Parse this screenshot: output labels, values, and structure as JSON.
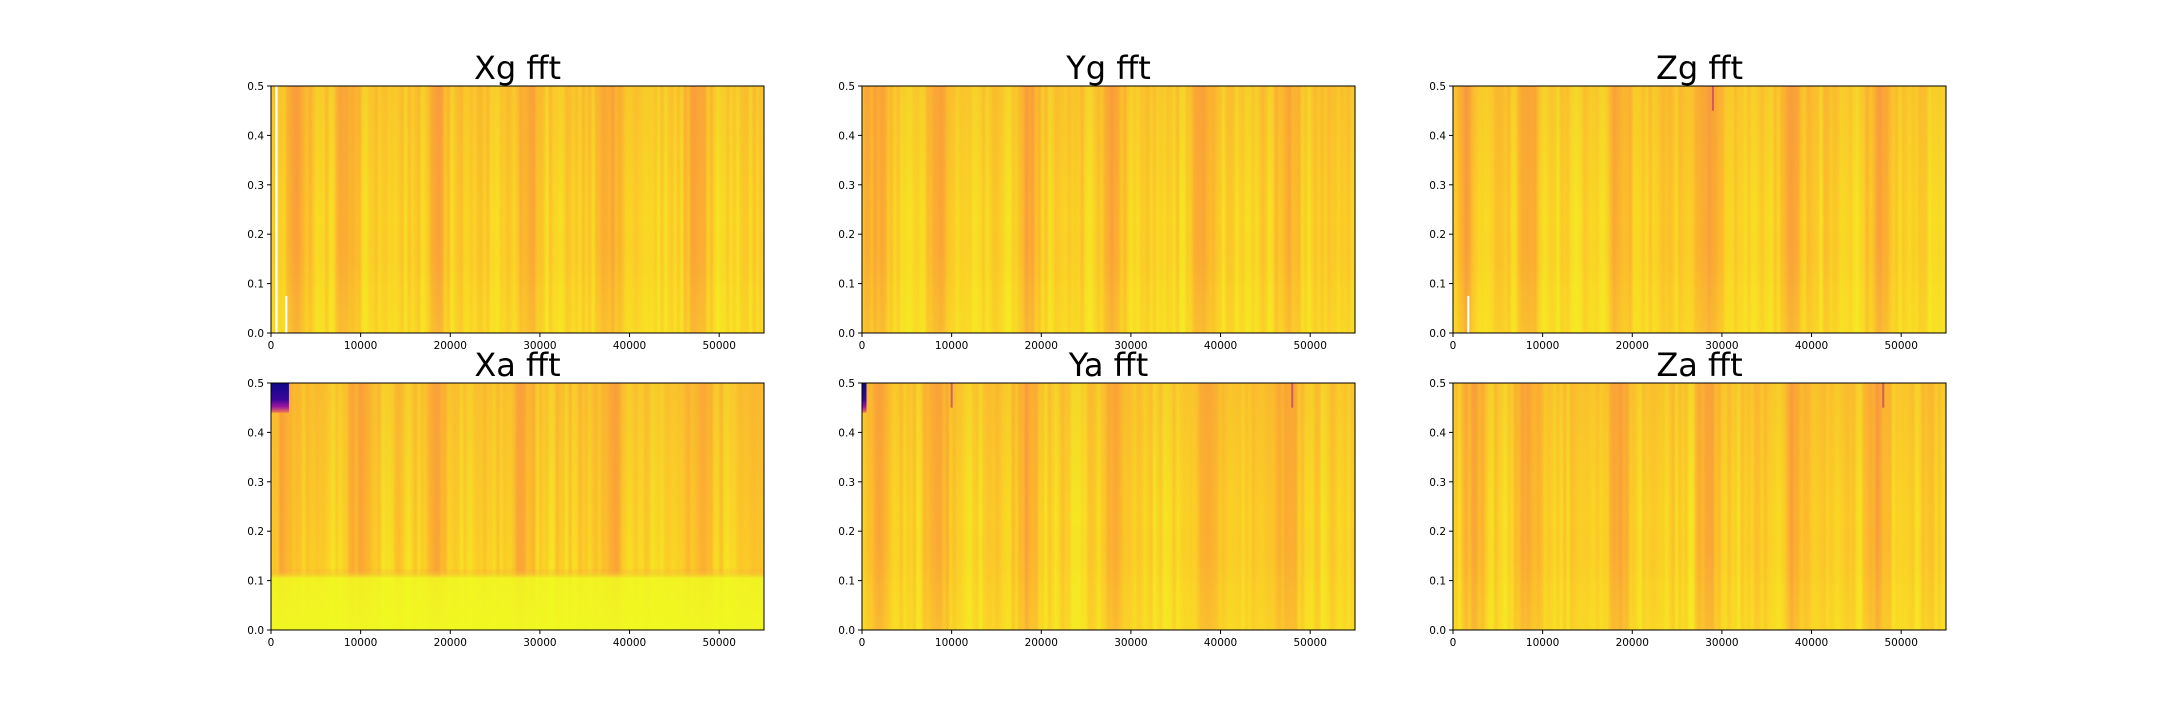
{
  "chart_data": [
    {
      "type": "heatmap",
      "title": "Xg fft",
      "xlabel": "",
      "ylabel": "",
      "xlim": [
        0,
        55000
      ],
      "ylim": [
        0,
        0.5
      ],
      "x_ticks": [
        "0",
        "10000",
        "20000",
        "30000",
        "40000",
        "50000"
      ],
      "y_ticks": [
        "0.0",
        "0.1",
        "0.2",
        "0.3",
        "0.4",
        "0.5"
      ],
      "colormap": "plasma",
      "grid": false,
      "dark_bands": [
        3000,
        8500,
        18500,
        29000,
        38000,
        47500
      ],
      "low_freq_bright": false,
      "features": [
        {
          "x": 600,
          "y0": 0,
          "y1": 0.5,
          "kind": "white-line"
        },
        {
          "x": 1700,
          "y0": 0,
          "y1": 0.075,
          "kind": "white-line"
        }
      ]
    },
    {
      "type": "heatmap",
      "title": "Yg fft",
      "xlabel": "",
      "ylabel": "",
      "xlim": [
        0,
        55000
      ],
      "ylim": [
        0,
        0.5
      ],
      "x_ticks": [
        "0",
        "10000",
        "20000",
        "30000",
        "40000",
        "50000"
      ],
      "y_ticks": [
        "0.0",
        "0.1",
        "0.2",
        "0.3",
        "0.4",
        "0.5"
      ],
      "colormap": "plasma",
      "grid": false,
      "dark_bands": [
        1500,
        8500,
        18500,
        28000,
        38000,
        47500
      ],
      "low_freq_bright": false,
      "features": []
    },
    {
      "type": "heatmap",
      "title": "Zg fft",
      "xlabel": "",
      "ylabel": "",
      "xlim": [
        0,
        55000
      ],
      "ylim": [
        0,
        0.5
      ],
      "x_ticks": [
        "0",
        "10000",
        "20000",
        "30000",
        "40000",
        "50000"
      ],
      "y_ticks": [
        "0.0",
        "0.1",
        "0.2",
        "0.3",
        "0.4",
        "0.5"
      ],
      "colormap": "plasma",
      "grid": false,
      "dark_bands": [
        1500,
        8500,
        18500,
        28500,
        38000,
        47500
      ],
      "low_freq_bright": false,
      "features": [
        {
          "x": 1700,
          "y0": 0,
          "y1": 0.075,
          "kind": "white-line"
        },
        {
          "x": 29000,
          "y0": 0.45,
          "y1": 0.5,
          "kind": "dark-spike"
        }
      ]
    },
    {
      "type": "heatmap",
      "title": "Xa fft",
      "xlabel": "",
      "ylabel": "",
      "xlim": [
        0,
        55000
      ],
      "ylim": [
        0,
        0.5
      ],
      "x_ticks": [
        "0",
        "10000",
        "20000",
        "30000",
        "40000",
        "50000"
      ],
      "y_ticks": [
        "0.0",
        "0.1",
        "0.2",
        "0.3",
        "0.4",
        "0.5"
      ],
      "colormap": "plasma",
      "grid": false,
      "dark_bands": [
        1500,
        10000,
        18500,
        28000,
        38000,
        48000
      ],
      "low_freq_bright": true,
      "features": [
        {
          "x0": 0,
          "x1": 2000,
          "y0": 0.44,
          "y1": 0.5,
          "kind": "dark-block"
        }
      ]
    },
    {
      "type": "heatmap",
      "title": "Ya fft",
      "xlabel": "",
      "ylabel": "",
      "xlim": [
        0,
        55000
      ],
      "ylim": [
        0,
        0.5
      ],
      "x_ticks": [
        "0",
        "10000",
        "20000",
        "30000",
        "40000",
        "50000"
      ],
      "y_ticks": [
        "0.0",
        "0.1",
        "0.2",
        "0.3",
        "0.4",
        "0.5"
      ],
      "colormap": "plasma",
      "grid": false,
      "dark_bands": [
        2000,
        8500,
        18500,
        28500,
        38500,
        47500
      ],
      "low_freq_bright": false,
      "features": [
        {
          "x0": 0,
          "x1": 500,
          "y0": 0.44,
          "y1": 0.5,
          "kind": "dark-block"
        },
        {
          "x": 10000,
          "y0": 0.45,
          "y1": 0.5,
          "kind": "dark-spike"
        },
        {
          "x": 48000,
          "y0": 0.45,
          "y1": 0.5,
          "kind": "dark-spike"
        }
      ]
    },
    {
      "type": "heatmap",
      "title": "Za fft",
      "xlabel": "",
      "ylabel": "",
      "xlim": [
        0,
        55000
      ],
      "ylim": [
        0,
        0.5
      ],
      "x_ticks": [
        "0",
        "10000",
        "20000",
        "30000",
        "40000",
        "50000"
      ],
      "y_ticks": [
        "0.0",
        "0.1",
        "0.2",
        "0.3",
        "0.4",
        "0.5"
      ],
      "colormap": "plasma",
      "grid": false,
      "dark_bands": [
        2500,
        8500,
        18500,
        28500,
        38000,
        47500
      ],
      "low_freq_bright": false,
      "features": [
        {
          "x": 48000,
          "y0": 0.45,
          "y1": 0.5,
          "kind": "dark-spike"
        }
      ]
    }
  ]
}
